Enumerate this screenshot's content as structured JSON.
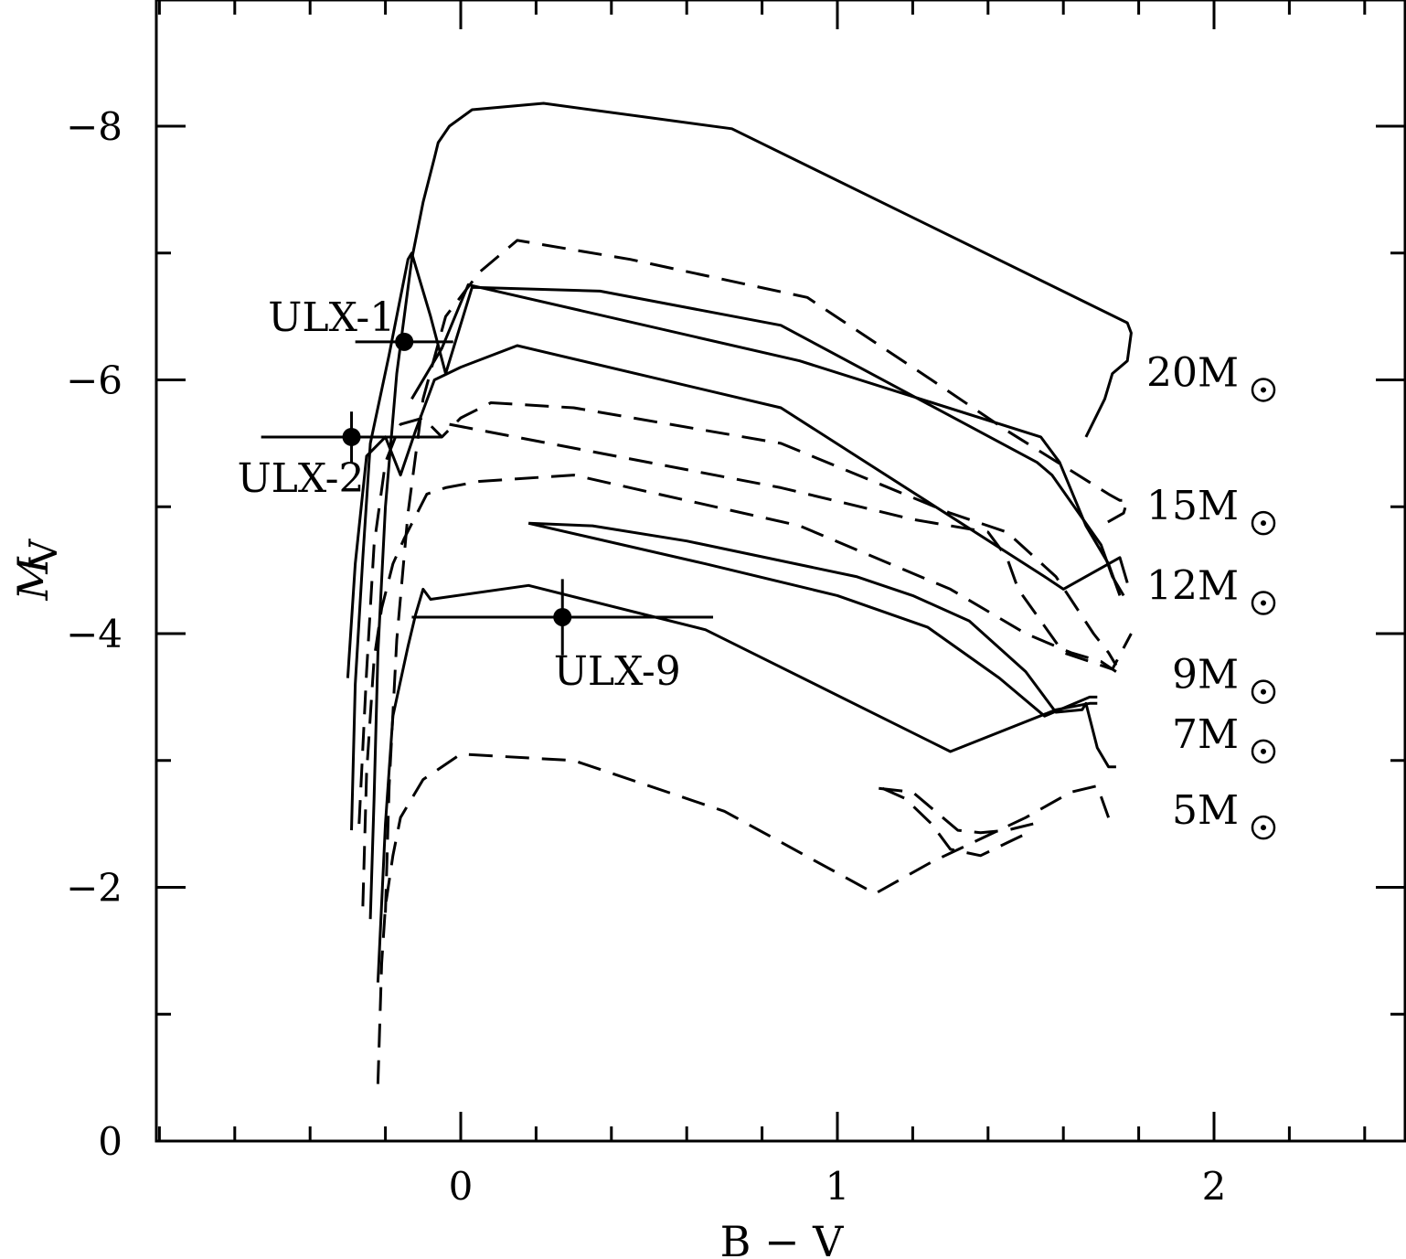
{
  "chart_data": {
    "type": "line",
    "title": "",
    "xlabel": "B − V",
    "ylabel": "M",
    "ylabel_subscript": "V",
    "xlim": [
      -0.8,
      2.5
    ],
    "ylim": [
      0,
      -9
    ],
    "y_inverted": true,
    "x_ticks": [
      0,
      1,
      2
    ],
    "x_tick_labels": [
      "0",
      "1",
      "2"
    ],
    "y_ticks": [
      0,
      -2,
      -4,
      -6,
      -8
    ],
    "y_tick_labels": [
      "0",
      "−2",
      "−4",
      "−6",
      "−8"
    ],
    "grid": false,
    "legend": "none",
    "series": [
      {
        "style": "solid",
        "x": [
          -0.24,
          -0.23,
          -0.22,
          -0.2,
          -0.17,
          -0.13,
          -0.1,
          -0.07,
          -0.06,
          -0.03,
          0.03,
          0.22,
          0.72,
          1.77,
          1.78,
          1.77,
          1.73,
          1.71,
          1.66
        ],
        "y": [
          -1.75,
          -2.7,
          -3.85,
          -5.0,
          -6.05,
          -6.95,
          -7.4,
          -7.75,
          -7.87,
          -8.0,
          -8.13,
          -8.18,
          -7.98,
          -6.45,
          -6.37,
          -6.15,
          -6.05,
          -5.85,
          -5.55
        ]
      },
      {
        "style": "dashed",
        "x": [
          -0.2,
          -0.19,
          -0.17,
          -0.14,
          -0.1,
          -0.04,
          0.05,
          0.15,
          0.45,
          0.92,
          1.25,
          1.45,
          1.72,
          1.75,
          1.77,
          1.76,
          1.7
        ],
        "y": [
          -1.8,
          -2.8,
          -3.95,
          -4.95,
          -5.85,
          -6.5,
          -6.85,
          -7.1,
          -6.95,
          -6.65,
          -6.0,
          -5.6,
          -5.1,
          -5.05,
          -5.05,
          -4.95,
          -4.85
        ]
      },
      {
        "style": "solid",
        "x": [
          -0.29,
          -0.28,
          -0.26,
          -0.24,
          -0.19,
          -0.14,
          -0.13,
          -0.08,
          -0.04,
          0.03,
          0.37,
          0.85,
          1.53,
          1.57,
          1.7,
          1.73,
          1.76
        ],
        "y": [
          -2.45,
          -3.6,
          -4.6,
          -5.5,
          -6.2,
          -6.95,
          -7.0,
          -6.5,
          -6.05,
          -6.73,
          -6.7,
          -6.43,
          -5.35,
          -5.25,
          -4.7,
          -4.45,
          -4.3
        ]
      },
      {
        "style": "solid",
        "x": [
          -0.13,
          -0.05,
          0.02,
          0.9,
          1.54,
          1.59,
          1.66,
          1.72,
          1.75
        ],
        "y": [
          -5.85,
          -6.25,
          -6.75,
          -6.15,
          -5.55,
          -5.35,
          -4.85,
          -4.55,
          -4.3
        ]
      },
      {
        "style": "dashed",
        "x": [
          -0.27,
          -0.25,
          -0.23,
          -0.2,
          -0.16,
          -0.1,
          -0.05,
          0.0,
          0.08,
          0.3,
          0.85,
          1.3,
          1.45,
          1.58,
          1.68,
          1.72,
          1.74
        ],
        "y": [
          -2.5,
          -3.7,
          -4.7,
          -5.35,
          -5.65,
          -5.7,
          -5.55,
          -5.7,
          -5.82,
          -5.78,
          -5.5,
          -4.95,
          -4.8,
          -4.45,
          -4.0,
          -3.85,
          -3.75
        ]
      },
      {
        "style": "solid",
        "x": [
          -0.3,
          -0.28,
          -0.25,
          -0.2,
          -0.16,
          -0.12,
          -0.07,
          0.0,
          0.15,
          0.85,
          1.55,
          1.6,
          1.75,
          1.77
        ],
        "y": [
          -3.65,
          -4.55,
          -5.4,
          -5.55,
          -5.25,
          -5.6,
          -6.0,
          -6.1,
          -6.27,
          -5.78,
          -4.45,
          -4.35,
          -4.6,
          -4.4
        ]
      },
      {
        "style": "dashed",
        "x": [
          -0.26,
          -0.25,
          -0.23,
          -0.21,
          -0.18,
          -0.15,
          -0.09,
          -0.04,
          0.05,
          0.3,
          0.9,
          1.3,
          1.5,
          1.62,
          1.7,
          1.74
        ],
        "y": [
          -1.85,
          -2.9,
          -3.8,
          -4.2,
          -4.55,
          -4.75,
          -5.1,
          -5.15,
          -5.2,
          -5.25,
          -4.85,
          -4.35,
          -4.0,
          -3.85,
          -3.78,
          -3.7
        ]
      },
      {
        "style": "dashed",
        "x": [
          -0.03,
          0.85,
          1.2,
          1.4,
          1.45,
          1.48,
          1.6,
          1.73,
          1.78
        ],
        "y": [
          -5.65,
          -5.15,
          -4.9,
          -4.8,
          -4.6,
          -4.35,
          -3.85,
          -3.72,
          -4.0
        ]
      },
      {
        "style": "solid",
        "x": [
          0.18,
          0.35,
          0.6,
          1.05,
          1.2,
          1.35,
          1.5,
          1.58,
          1.65,
          1.66,
          1.69,
          1.72,
          1.74
        ],
        "y": [
          -4.87,
          -4.85,
          -4.73,
          -4.45,
          -4.3,
          -4.1,
          -3.7,
          -3.38,
          -3.4,
          -3.45,
          -3.1,
          -2.95,
          -2.95
        ]
      },
      {
        "style": "solid",
        "x": [
          0.18,
          0.65,
          1.0,
          1.24,
          1.43,
          1.55,
          1.67,
          1.69
        ],
        "y": [
          -4.87,
          -4.55,
          -4.3,
          -4.05,
          -3.65,
          -3.35,
          -3.5,
          -3.5
        ]
      },
      {
        "style": "solid",
        "x": [
          -0.22,
          -0.2,
          -0.18,
          -0.14,
          -0.12,
          -0.1,
          -0.08,
          0.18,
          0.65,
          1.3,
          1.58,
          1.67,
          1.69
        ],
        "y": [
          -1.25,
          -2.5,
          -3.35,
          -3.9,
          -4.15,
          -4.35,
          -4.27,
          -4.38,
          -4.03,
          -3.07,
          -3.4,
          -3.45,
          -3.45
        ]
      },
      {
        "style": "dashed",
        "x": [
          -0.22,
          -0.21,
          -0.2,
          -0.18,
          -0.16,
          -0.1,
          0.0,
          0.3,
          0.7,
          1.1,
          1.25,
          1.5,
          1.62,
          1.69,
          1.72
        ],
        "y": [
          -0.45,
          -1.4,
          -1.85,
          -2.25,
          -2.55,
          -2.85,
          -3.05,
          -3.0,
          -2.6,
          -1.95,
          -2.2,
          -2.55,
          -2.75,
          -2.8,
          -2.55
        ]
      },
      {
        "style": "dashed",
        "x": [
          1.11,
          1.2,
          1.26,
          1.32,
          1.38,
          1.45,
          1.52
        ],
        "y": [
          -2.78,
          -2.75,
          -2.6,
          -2.45,
          -2.43,
          -2.45,
          -2.5
        ]
      },
      {
        "style": "dashed",
        "x": [
          1.12,
          1.18,
          1.25,
          1.3,
          1.38,
          1.45,
          1.52
        ],
        "y": [
          -2.78,
          -2.7,
          -2.5,
          -2.3,
          -2.25,
          -2.35,
          -2.45
        ]
      }
    ],
    "points": [
      {
        "label": "ULX-1",
        "x": -0.15,
        "y": -6.3,
        "xerr": [
          0.13,
          0.13
        ],
        "yerr": [
          0.0,
          0.0
        ],
        "label_anchor": "upper-left"
      },
      {
        "label": "ULX-2",
        "x": -0.29,
        "y": -5.55,
        "xerr": [
          0.24,
          0.24
        ],
        "yerr": [
          0.2,
          0.2
        ],
        "label_anchor": "lower-left"
      },
      {
        "label": "ULX-9",
        "x": 0.27,
        "y": -4.13,
        "xerr": [
          0.4,
          0.4
        ],
        "yerr": [
          0.3,
          0.3
        ],
        "label_anchor": "below"
      }
    ],
    "mass_labels": [
      {
        "text": "20M",
        "y": -5.95
      },
      {
        "text": "15M",
        "y": -4.9
      },
      {
        "text": "12M",
        "y": -4.27
      },
      {
        "text": "9M",
        "y": -3.57
      },
      {
        "text": "7M",
        "y": -3.1
      },
      {
        "text": "5M",
        "y": -2.5
      }
    ],
    "sun_symbol": "⊙"
  }
}
